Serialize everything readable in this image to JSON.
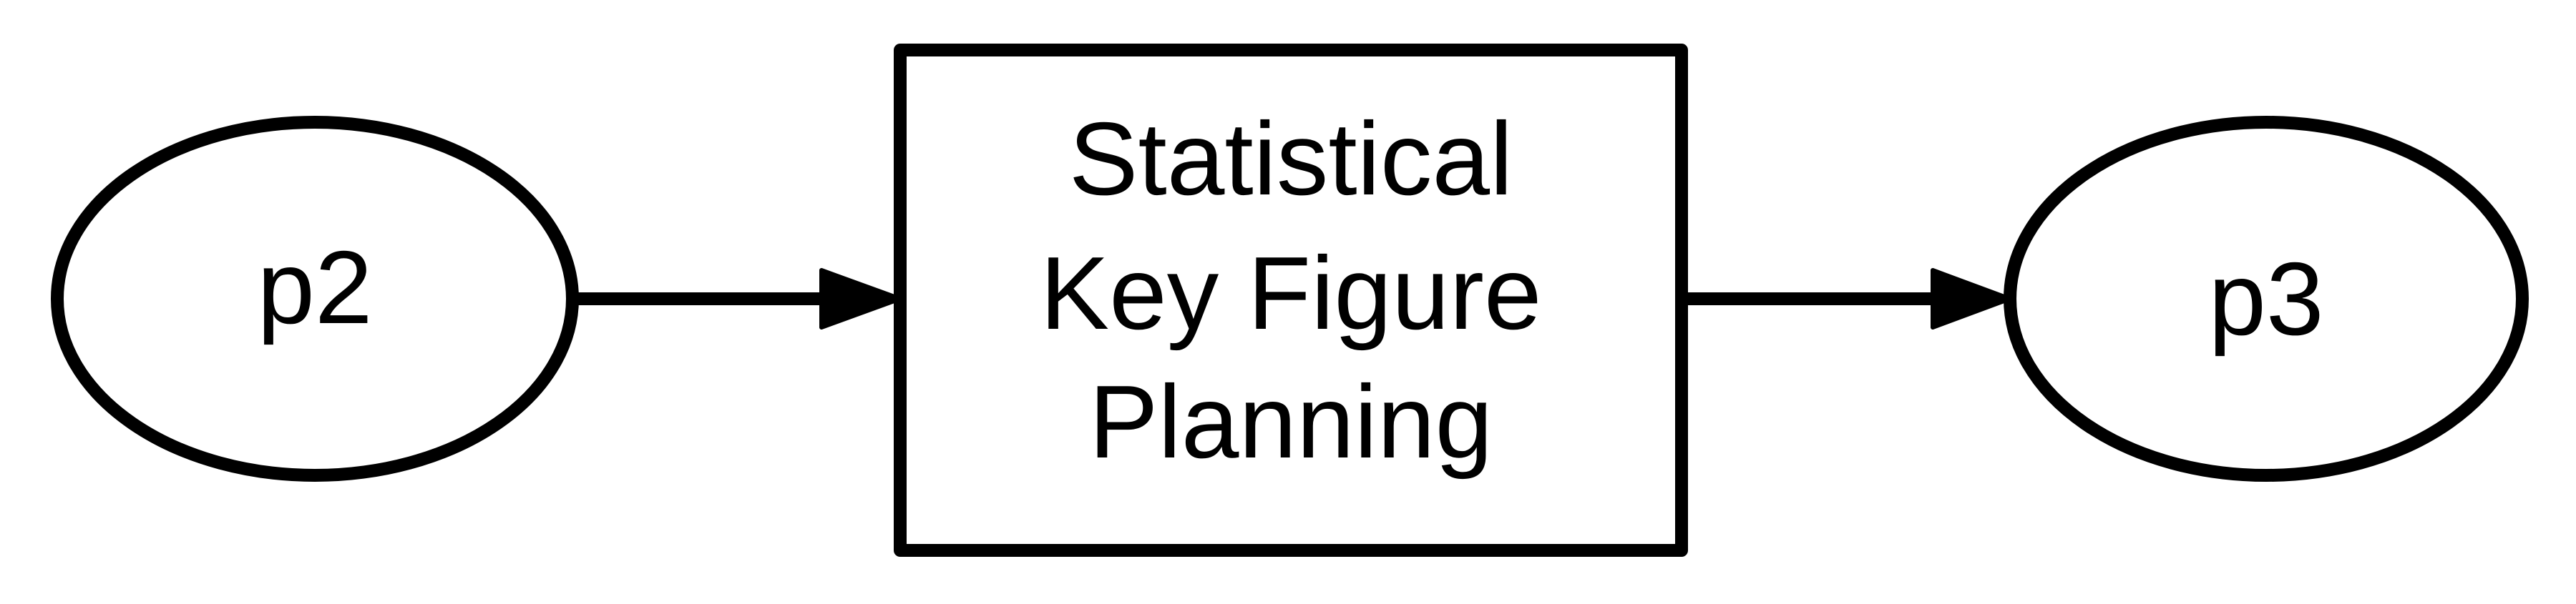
{
  "diagram": {
    "nodes": [
      {
        "id": "p2",
        "shape": "ellipse",
        "label": "p2"
      },
      {
        "id": "process",
        "shape": "rectangle",
        "label_lines": [
          "Statistical",
          "Key Figure",
          "Planning"
        ]
      },
      {
        "id": "p3",
        "shape": "ellipse",
        "label": "p3"
      }
    ],
    "edges": [
      {
        "from": "p2",
        "to": "process"
      },
      {
        "from": "process",
        "to": "p3"
      }
    ],
    "colors": {
      "stroke": "#000000",
      "fill": "#ffffff",
      "text": "#000000"
    }
  }
}
